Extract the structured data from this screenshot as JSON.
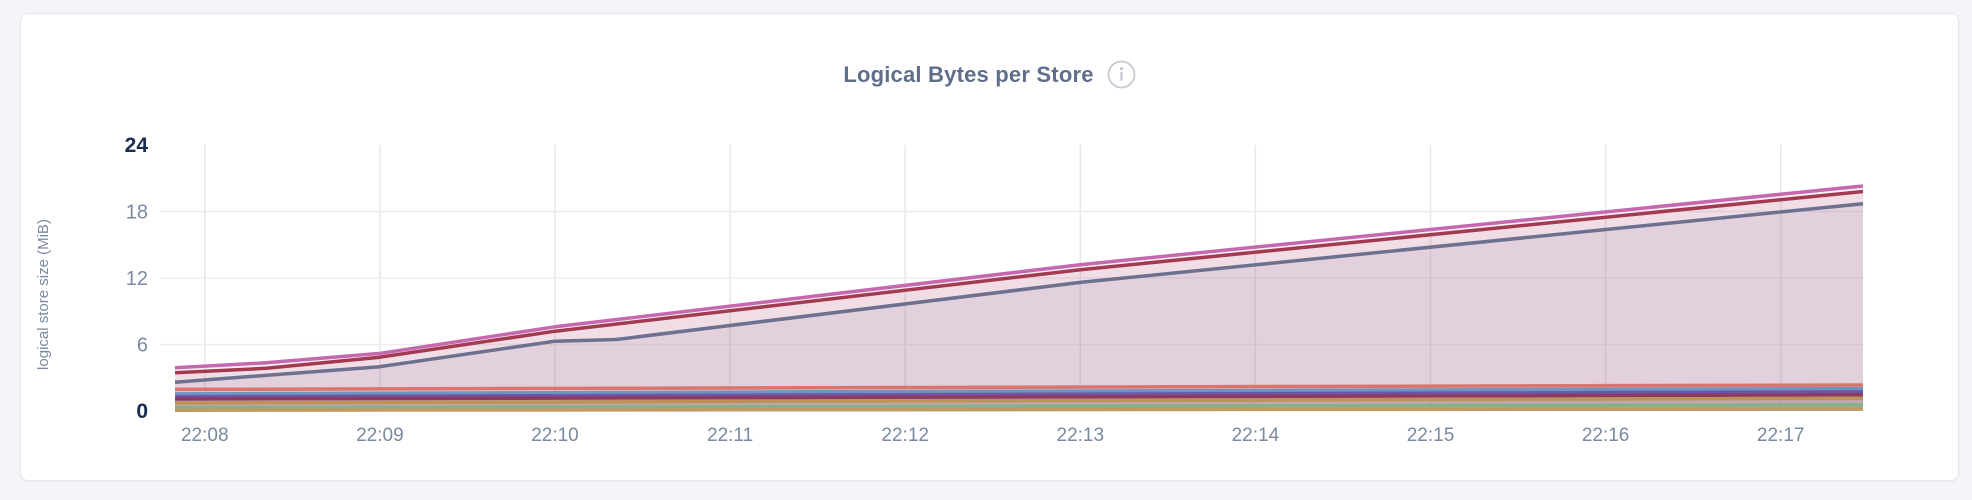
{
  "header": {
    "title": "Logical Bytes per Store",
    "info_icon": "info-circle-icon"
  },
  "chart_data": {
    "type": "area",
    "title": "Logical Bytes per Store",
    "xlabel": "",
    "ylabel": "logical store size (MiB)",
    "unit": "MiB",
    "ylim": [
      0,
      24
    ],
    "y_ticks": [
      0,
      6,
      12,
      18,
      24
    ],
    "y_ticks_strong": [
      0,
      24
    ],
    "grid": true,
    "legend": "none",
    "x_domain_minutes": [
      7.83,
      17.47
    ],
    "x_ticks": [
      {
        "t": 8,
        "label": "22:08"
      },
      {
        "t": 9,
        "label": "22:09"
      },
      {
        "t": 10,
        "label": "22:10"
      },
      {
        "t": 11,
        "label": "22:11"
      },
      {
        "t": 12,
        "label": "22:12"
      },
      {
        "t": 13,
        "label": "22:13"
      },
      {
        "t": 14,
        "label": "22:14"
      },
      {
        "t": 15,
        "label": "22:15"
      },
      {
        "t": 16,
        "label": "22:16"
      },
      {
        "t": 17,
        "label": "22:17"
      }
    ],
    "series": [
      {
        "name": "series-1-pink",
        "color": "#c668ae",
        "fill_opacity": 0.1,
        "points": [
          [
            7.83,
            3.9
          ],
          [
            8.35,
            4.35
          ],
          [
            9,
            5.2
          ],
          [
            10,
            7.6
          ],
          [
            13,
            13.2
          ],
          [
            17.47,
            20.3
          ]
        ]
      },
      {
        "name": "series-2-dark-red",
        "color": "#a23a50",
        "fill_opacity": 0.1,
        "points": [
          [
            7.83,
            3.45
          ],
          [
            8.35,
            3.85
          ],
          [
            9,
            4.85
          ],
          [
            10,
            7.2
          ],
          [
            13,
            12.75
          ],
          [
            17.47,
            19.8
          ]
        ]
      },
      {
        "name": "series-3-slate",
        "color": "#6e7090",
        "fill_opacity": 0.1,
        "points": [
          [
            7.83,
            2.6
          ],
          [
            9,
            4.0
          ],
          [
            10,
            6.3
          ],
          [
            10.35,
            6.45
          ],
          [
            13,
            11.6
          ],
          [
            17.47,
            18.7
          ]
        ]
      },
      {
        "name": "series-4-salmon",
        "color": "#db746c",
        "fill_opacity": 0.1,
        "points": [
          [
            7.83,
            1.95
          ],
          [
            17.47,
            2.35
          ]
        ]
      },
      {
        "name": "series-5-blue",
        "color": "#6d94c3",
        "fill_opacity": 0.1,
        "points": [
          [
            7.83,
            1.54
          ],
          [
            17.47,
            2.02
          ]
        ]
      },
      {
        "name": "series-6-violet",
        "color": "#6e56a5",
        "fill_opacity": 0.1,
        "points": [
          [
            7.83,
            1.27
          ],
          [
            17.47,
            1.72
          ]
        ]
      },
      {
        "name": "series-7-magenta",
        "color": "#8d3a62",
        "fill_opacity": 0.1,
        "points": [
          [
            7.83,
            1.08
          ],
          [
            17.47,
            1.45
          ]
        ]
      },
      {
        "name": "series-8-gold",
        "color": "#bd9356",
        "fill_opacity": 0.12,
        "points": [
          [
            7.83,
            0.72
          ],
          [
            17.47,
            1.15
          ]
        ]
      },
      {
        "name": "series-9-green",
        "color": "#84b287",
        "fill_opacity": 0.12,
        "points": [
          [
            7.83,
            0.3
          ],
          [
            17.47,
            0.55
          ]
        ]
      },
      {
        "name": "series-10-tan",
        "color": "#c09a63",
        "fill_opacity": 0.14,
        "points": [
          [
            7.83,
            0.07
          ],
          [
            17.47,
            0.18
          ]
        ]
      }
    ]
  },
  "colors": {
    "page_bg": "#f4f5f9",
    "card_bg": "#ffffff",
    "title_text": "#5f6f8a",
    "axis_text": "#7b8aa1",
    "axis_text_strong": "#1c2c4f",
    "grid": "#e7e7ea"
  }
}
